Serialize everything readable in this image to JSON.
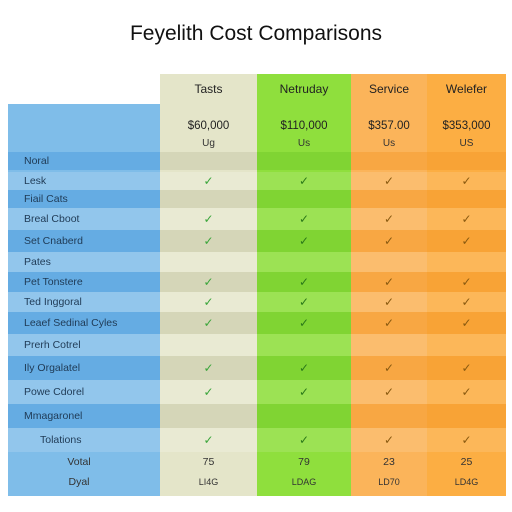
{
  "title": "Feyelith Cost Comparisons",
  "columns": [
    {
      "label": "Tasts",
      "price": "$60,000",
      "unit": "Ug"
    },
    {
      "label": "Netruday",
      "price": "$110,000",
      "unit": "Us"
    },
    {
      "label": "Service",
      "price": "$357.00",
      "unit": "Us"
    },
    {
      "label": "Welefer",
      "price": "$353,000",
      "unit": "US"
    }
  ],
  "rows": [
    {
      "label": "Noral",
      "checks": [
        false,
        false,
        false,
        false
      ]
    },
    {
      "label": "Lesk",
      "checks": [
        true,
        true,
        true,
        true
      ]
    },
    {
      "label": "Fiail Cats",
      "checks": [
        false,
        false,
        false,
        false
      ]
    },
    {
      "label": "Breal Cboot",
      "checks": [
        true,
        true,
        true,
        true
      ]
    },
    {
      "label": "Set Cnaberd",
      "checks": [
        true,
        true,
        true,
        true
      ]
    },
    {
      "label": "Pates",
      "checks": [
        false,
        false,
        false,
        false
      ]
    },
    {
      "label": "Pet Tonstere",
      "checks": [
        true,
        true,
        true,
        true
      ]
    },
    {
      "label": "Ted Inggoral",
      "checks": [
        true,
        true,
        true,
        true
      ]
    },
    {
      "label": "Leaef Sedinal Cyles",
      "checks": [
        true,
        true,
        true,
        true
      ]
    },
    {
      "label": "Prerh Cotrel",
      "checks": [
        false,
        false,
        false,
        false
      ]
    },
    {
      "label": "Ily Orgalatel",
      "checks": [
        true,
        true,
        true,
        true
      ]
    },
    {
      "label": "Powe Cdorel",
      "checks": [
        true,
        true,
        true,
        true
      ]
    },
    {
      "label": "Mmagaronel",
      "checks": [
        false,
        false,
        false,
        false
      ]
    },
    {
      "label": "Tolations",
      "checks": [
        true,
        true,
        true,
        true
      ]
    }
  ],
  "footer": {
    "label1": "Votal",
    "label2": "Dyal",
    "totals": [
      "75",
      "79",
      "23",
      "25"
    ],
    "subs": [
      "LI4G",
      "LDAG",
      "LD70",
      "LD4G"
    ]
  },
  "icons": {
    "check": "check-icon"
  },
  "colors": {
    "label_column": "#7fbde9",
    "tasts_column": "#e4e5c9",
    "netruday_column": "#8fdf3d",
    "service_column": "#fbb45a",
    "welefer_column": "#fcae43"
  }
}
